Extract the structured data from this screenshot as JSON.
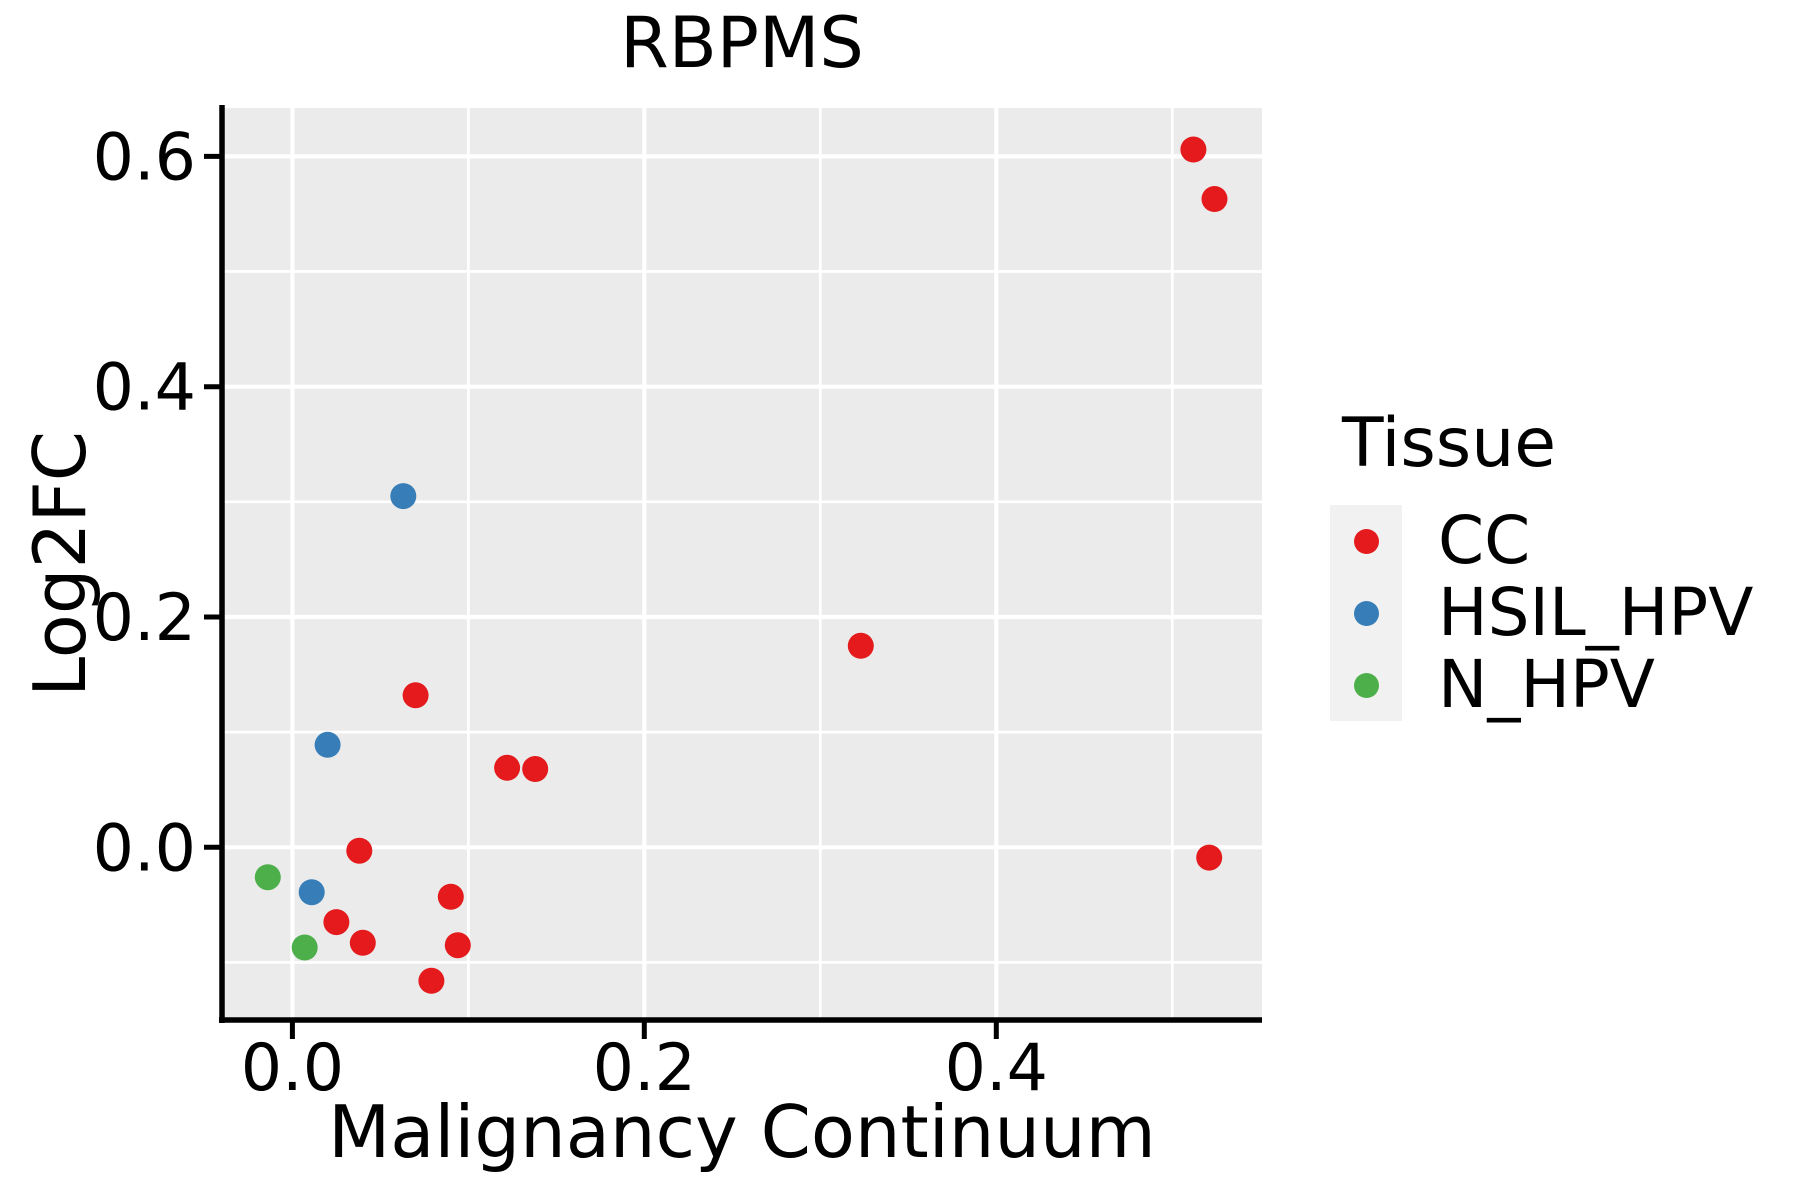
{
  "figure": {
    "title": "RBPMS",
    "x_label": "Malignancy Continuum",
    "y_label": "Log2FC"
  },
  "legend": {
    "title": "Tissue",
    "items": [
      {
        "label": "CC",
        "color": "#E41A1C"
      },
      {
        "label": "HSIL_HPV",
        "color": "#377EB8"
      },
      {
        "label": "N_HPV",
        "color": "#4DAF4A"
      }
    ]
  },
  "chart_data": {
    "type": "scatter",
    "title": "RBPMS",
    "xlabel": "Malignancy Continuum",
    "ylabel": "Log2FC",
    "xlim": [
      -0.04,
      0.551
    ],
    "ylim": [
      -0.15,
      0.642
    ],
    "grid": true,
    "legend_position": "right",
    "panel_background": "#EBEBEB",
    "gridline_color": "#FFFFFF",
    "axis_color": "#000000",
    "x_ticks": {
      "values": [
        0.0,
        0.2,
        0.4
      ],
      "labels": [
        "0.0",
        "0.2",
        "0.4"
      ]
    },
    "y_ticks": {
      "values": [
        0.0,
        0.2,
        0.4,
        0.6
      ],
      "labels": [
        "0.0",
        "0.2",
        "0.4",
        "0.6"
      ]
    },
    "x_minor_gridlines": [
      0.1,
      0.3,
      0.5
    ],
    "y_minor_gridlines": [
      -0.1,
      0.1,
      0.3,
      0.5
    ],
    "series": [
      {
        "name": "CC",
        "color": "#E41A1C",
        "points": [
          [
            0.512,
            0.606
          ],
          [
            0.524,
            0.563
          ],
          [
            0.521,
            -0.009
          ],
          [
            0.323,
            0.175
          ],
          [
            0.07,
            0.132
          ],
          [
            0.122,
            0.069
          ],
          [
            0.138,
            0.068
          ],
          [
            0.038,
            -0.003
          ],
          [
            0.09,
            -0.043
          ],
          [
            0.025,
            -0.065
          ],
          [
            0.04,
            -0.083
          ],
          [
            0.094,
            -0.085
          ],
          [
            0.079,
            -0.116
          ]
        ]
      },
      {
        "name": "HSIL_HPV",
        "color": "#377EB8",
        "points": [
          [
            0.063,
            0.305
          ],
          [
            0.02,
            0.089
          ],
          [
            0.011,
            -0.039
          ]
        ]
      },
      {
        "name": "N_HPV",
        "color": "#4DAF4A",
        "points": [
          [
            -0.014,
            -0.026
          ],
          [
            0.007,
            -0.087
          ]
        ]
      }
    ]
  }
}
